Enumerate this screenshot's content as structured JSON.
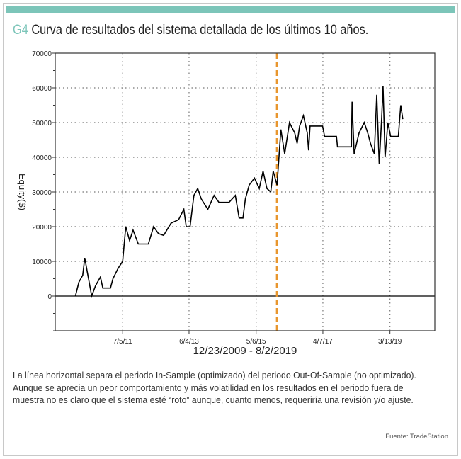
{
  "header": {
    "tag": "G4",
    "title": "Curva de resultados del sistema detallada de los últimos 10 años."
  },
  "colors": {
    "accent": "#7cc5b9",
    "line": "#000000",
    "divider": "#e8962e"
  },
  "chart_data": {
    "type": "line",
    "title": "Curva de resultados del sistema detallada de los últimos 10 años.",
    "xlabel": "12/23/2009 - 8/2/2019",
    "ylabel": "Equity($)",
    "x_unit": "decimal year",
    "xlim": [
      2009.57,
      2020.49
    ],
    "ylim": [
      -10000,
      70000
    ],
    "yticks": [
      0,
      10000,
      20000,
      30000,
      40000,
      50000,
      60000,
      70000
    ],
    "ytick_labels": [
      "0",
      "10000",
      "20000",
      "30000",
      "40000",
      "50000",
      "60000",
      "70000"
    ],
    "xticks": [
      2011.51,
      2013.42,
      2015.35,
      2017.27,
      2019.2
    ],
    "xtick_labels": [
      "7/5/11",
      "6/4/13",
      "5/6/15",
      "4/7/17",
      "3/13/19"
    ],
    "grid": true,
    "divider": {
      "x": 2015.95,
      "label_left": "In-Sample",
      "label_right": "Out-Of-Sample"
    },
    "series": [
      {
        "name": "Equity",
        "x": [
          2010.15,
          2010.25,
          2010.36,
          2010.42,
          2010.49,
          2010.62,
          2010.73,
          2010.87,
          2010.94,
          2011.16,
          2011.23,
          2011.38,
          2011.51,
          2011.6,
          2011.71,
          2011.81,
          2011.96,
          2012.03,
          2012.25,
          2012.4,
          2012.54,
          2012.69,
          2012.9,
          2013.12,
          2013.27,
          2013.34,
          2013.45,
          2013.56,
          2013.67,
          2013.77,
          2013.96,
          2014.14,
          2014.28,
          2014.43,
          2014.57,
          2014.75,
          2014.86,
          2014.97,
          2015.04,
          2015.15,
          2015.3,
          2015.44,
          2015.55,
          2015.66,
          2015.77,
          2015.84,
          2015.95,
          2016.06,
          2016.17,
          2016.31,
          2016.46,
          2016.53,
          2016.6,
          2016.71,
          2016.82,
          2016.86,
          2016.9,
          2017.26,
          2017.32,
          2017.66,
          2017.69,
          2018.09,
          2018.11,
          2018.17,
          2018.31,
          2018.46,
          2018.56,
          2018.64,
          2018.75,
          2018.82,
          2018.89,
          2018.96,
          2019.0,
          2019.06,
          2019.14,
          2019.22,
          2019.44,
          2019.51,
          2019.57
        ],
        "y": [
          0,
          4000,
          6000,
          11000,
          7000,
          0,
          3000,
          5500,
          2300,
          2300,
          5000,
          8000,
          10000,
          20000,
          16000,
          19000,
          15000,
          15000,
          15000,
          20000,
          18000,
          17500,
          21000,
          22000,
          25000,
          20000,
          20000,
          29000,
          31000,
          28000,
          25000,
          29000,
          27000,
          27000,
          27000,
          29000,
          22500,
          22500,
          28000,
          32000,
          34000,
          31000,
          36000,
          31000,
          30000,
          36000,
          32000,
          48000,
          41000,
          50000,
          47000,
          44000,
          49000,
          52000,
          47000,
          42000,
          49000,
          49000,
          46000,
          46000,
          43000,
          43000,
          56000,
          41000,
          47000,
          50000,
          47000,
          44000,
          41000,
          58000,
          38000,
          51000,
          60500,
          40000,
          50000,
          46000,
          46000,
          55000,
          51000
        ]
      }
    ]
  },
  "caption": "La línea horizontal separa el periodo In-Sample (optimizado) del periodo Out-Of-Sample (no optimizado). Aunque se aprecia un peor comportamiento y más volatilidad en los resultados en el periodo fuera de muestra no es claro que el sistema esté “roto” aunque, cuanto menos, requeriría una revisión y/o ajuste.",
  "source": "Fuente: TradeStation"
}
